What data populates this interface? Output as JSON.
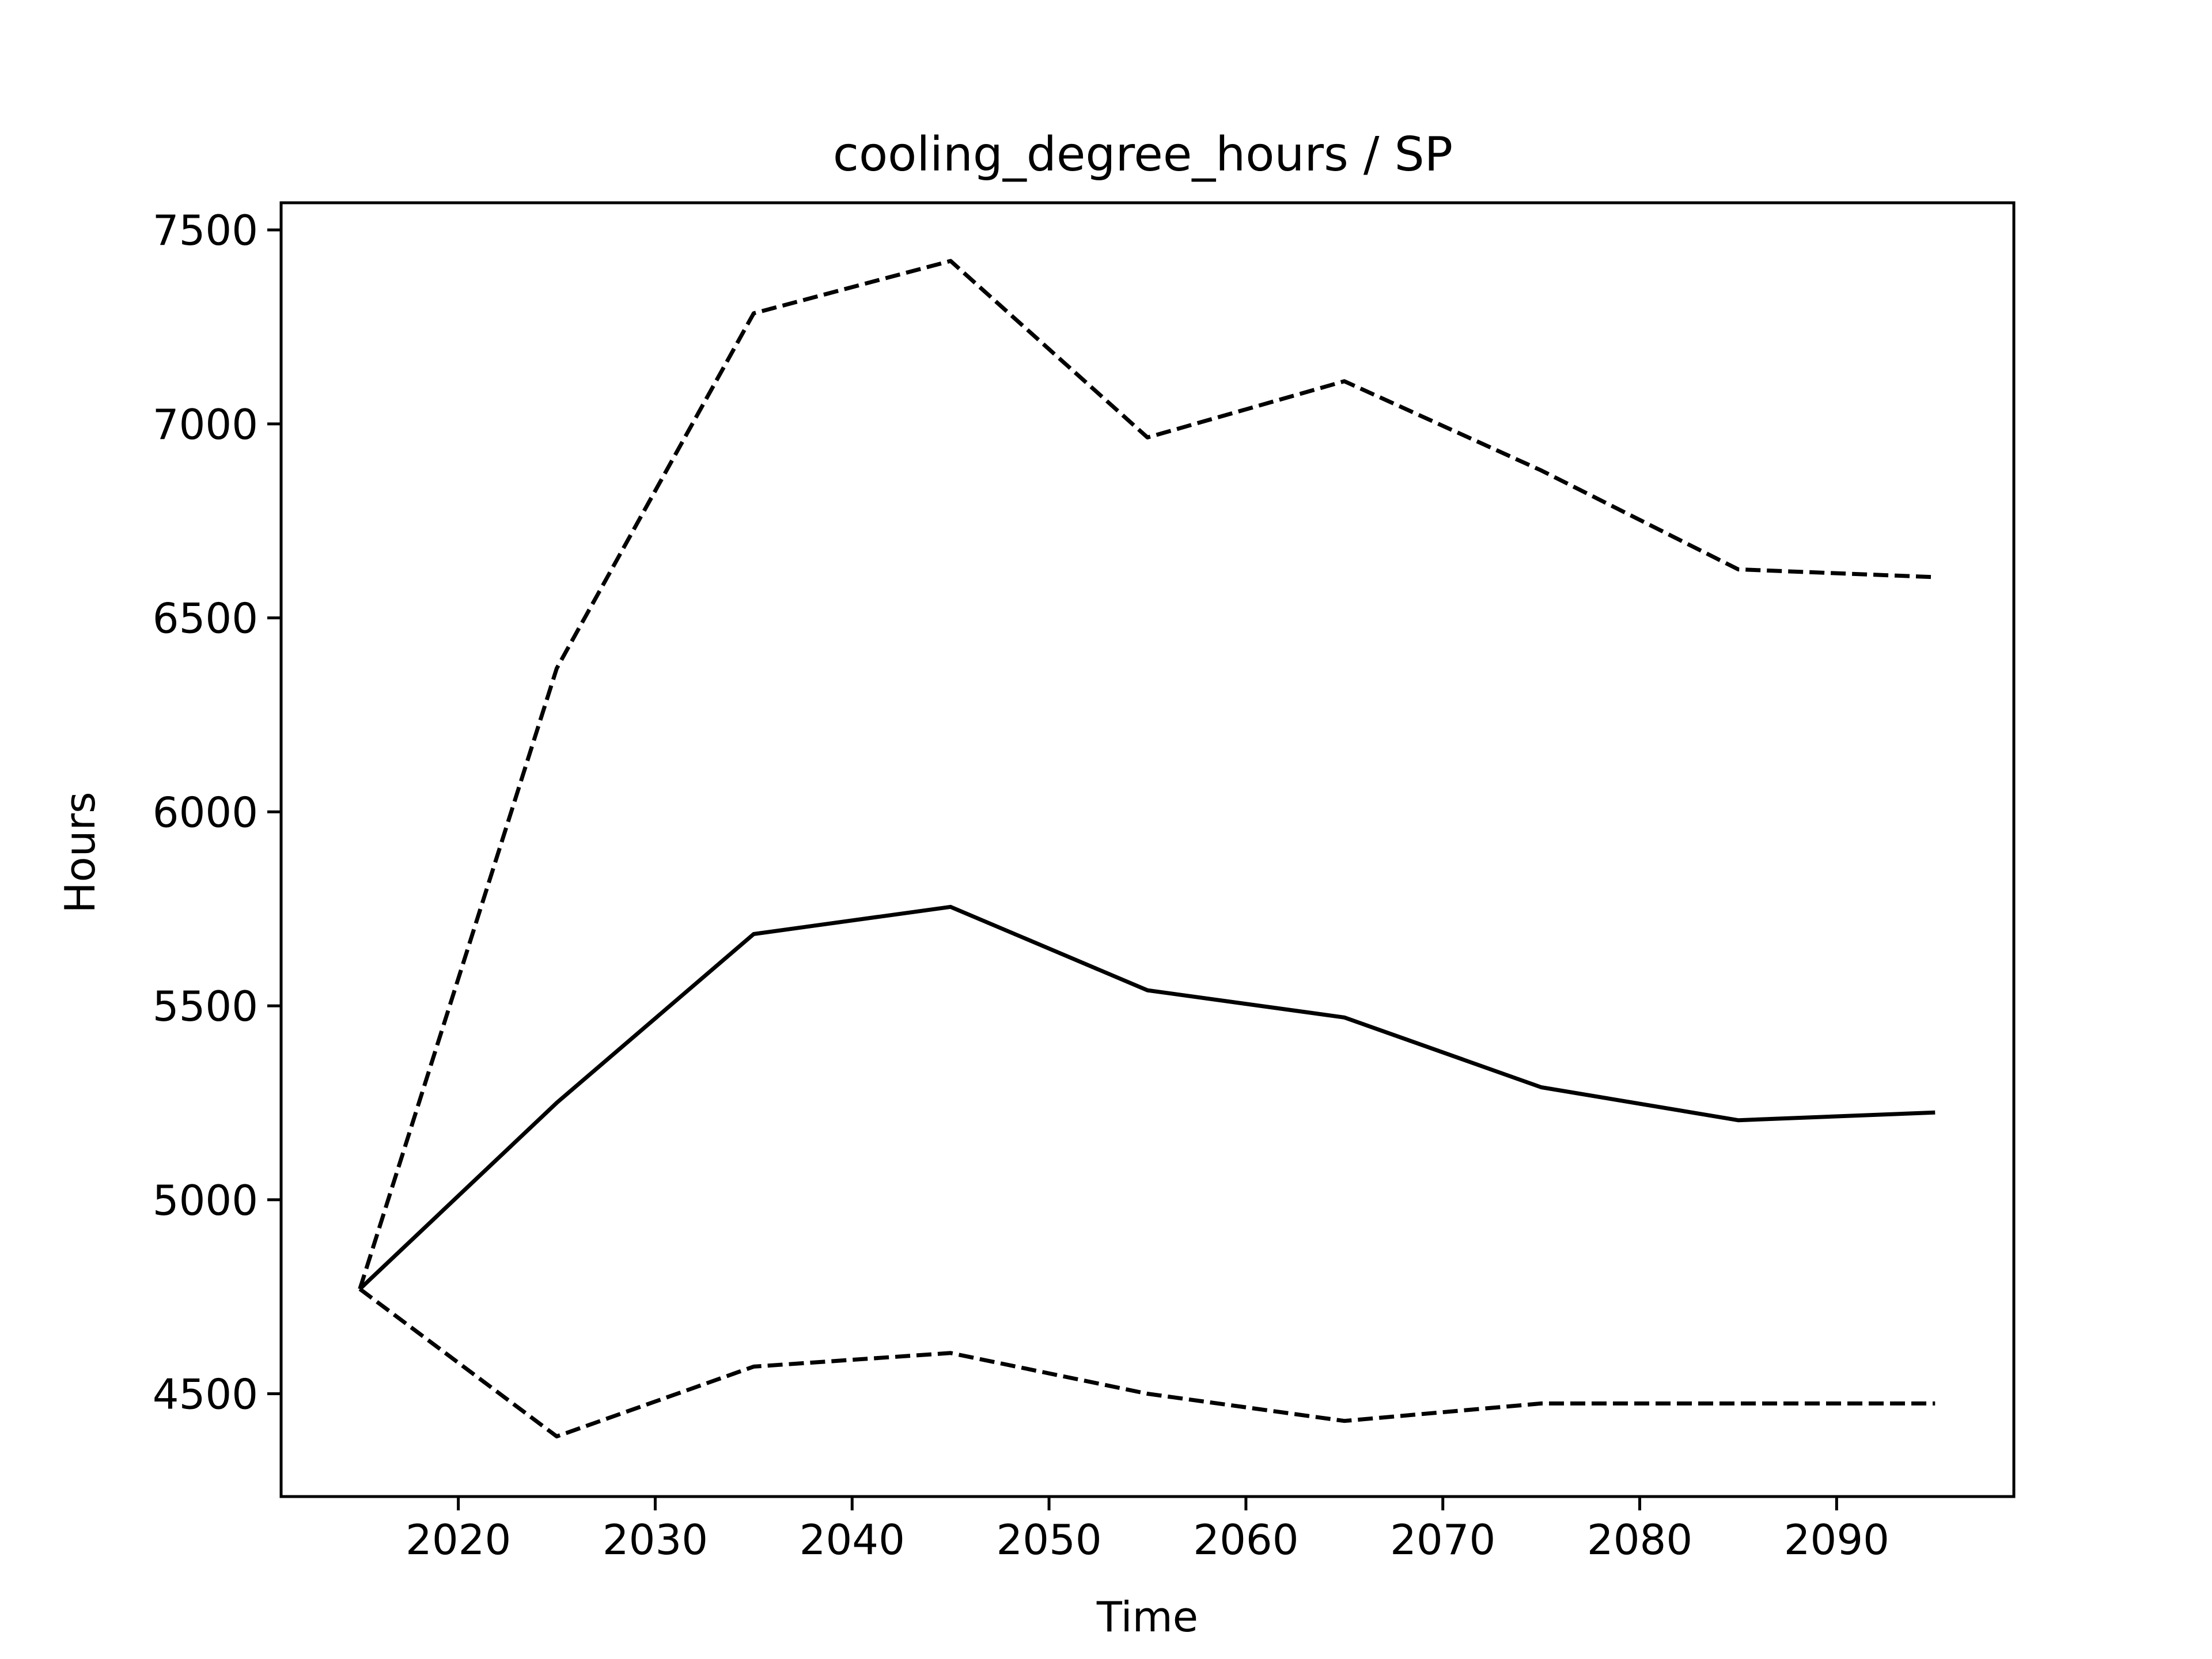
{
  "chart_data": {
    "type": "line",
    "title": "cooling_degree_hours / SP",
    "xlabel": "Time",
    "ylabel": "Hours",
    "x": [
      2015,
      2025,
      2035,
      2045,
      2055,
      2065,
      2075,
      2085,
      2095
    ],
    "xticks": [
      2020,
      2030,
      2040,
      2050,
      2060,
      2070,
      2080,
      2090
    ],
    "yticks": [
      4500,
      5000,
      5500,
      6000,
      6500,
      7000,
      7500
    ],
    "xlim": [
      2011,
      2099
    ],
    "ylim": [
      4235,
      7570
    ],
    "grid": false,
    "series": [
      {
        "style": "solid",
        "color": "#000000",
        "values": [
          4770,
          5250,
          5685,
          5755,
          5540,
          5470,
          5290,
          5205,
          5225
        ]
      },
      {
        "style": "dashed",
        "color": "#000000",
        "values": [
          4770,
          6370,
          7285,
          7420,
          6965,
          7110,
          6880,
          6625,
          6605
        ]
      },
      {
        "style": "dashed",
        "color": "#000000",
        "values": [
          4770,
          4390,
          4570,
          4605,
          4500,
          4430,
          4475,
          4475,
          4475
        ]
      }
    ]
  }
}
